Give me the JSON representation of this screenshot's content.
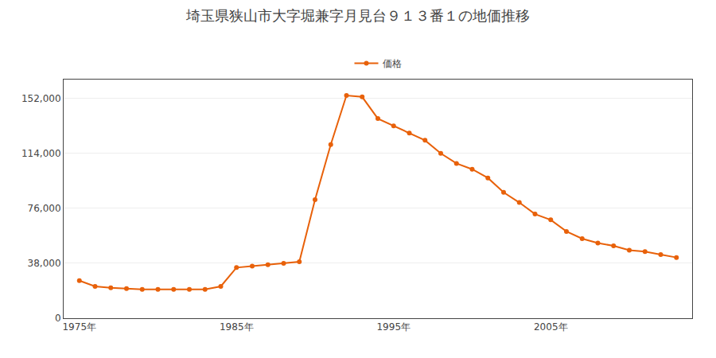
{
  "chart_data": {
    "type": "line",
    "title": "埼玉県狭山市大字堀兼字月見台９１３番１の地価推移",
    "x": [
      1975,
      1976,
      1977,
      1978,
      1979,
      1980,
      1981,
      1982,
      1983,
      1984,
      1985,
      1986,
      1987,
      1988,
      1989,
      1990,
      1991,
      1992,
      1993,
      1994,
      1995,
      1996,
      1997,
      1998,
      1999,
      2000,
      2001,
      2002,
      2003,
      2004,
      2005,
      2006,
      2007,
      2008,
      2009,
      2010,
      2011,
      2012,
      2013
    ],
    "series": [
      {
        "name": "価格",
        "color": "#e8610a",
        "marker": "circle",
        "line_style": "solid",
        "values": [
          26000,
          22000,
          21000,
          20500,
          20000,
          20000,
          20000,
          20000,
          20000,
          22000,
          35000,
          36000,
          37000,
          38000,
          39000,
          82000,
          120000,
          154000,
          153000,
          138000,
          133000,
          128000,
          123000,
          114000,
          107000,
          103000,
          97000,
          87000,
          80000,
          72000,
          68000,
          60000,
          55000,
          52000,
          50000,
          47000,
          46000,
          44000,
          42000
        ]
      }
    ],
    "xlim": [
      1974,
      2014
    ],
    "xticks": [
      {
        "value": 1975,
        "label": "1975年"
      },
      {
        "value": 1985,
        "label": "1985年"
      },
      {
        "value": 1995,
        "label": "1995年"
      },
      {
        "value": 2005,
        "label": "2005年"
      }
    ],
    "ylim": [
      0,
      165000
    ],
    "yticks": [
      0,
      {
        "value": 38000,
        "label": "38,000"
      },
      {
        "value": 76000,
        "label": "76,000"
      },
      {
        "value": 114000,
        "label": "114,000"
      },
      {
        "value": 152000,
        "label": "152,000"
      }
    ],
    "grid": "y",
    "legend": "top"
  }
}
